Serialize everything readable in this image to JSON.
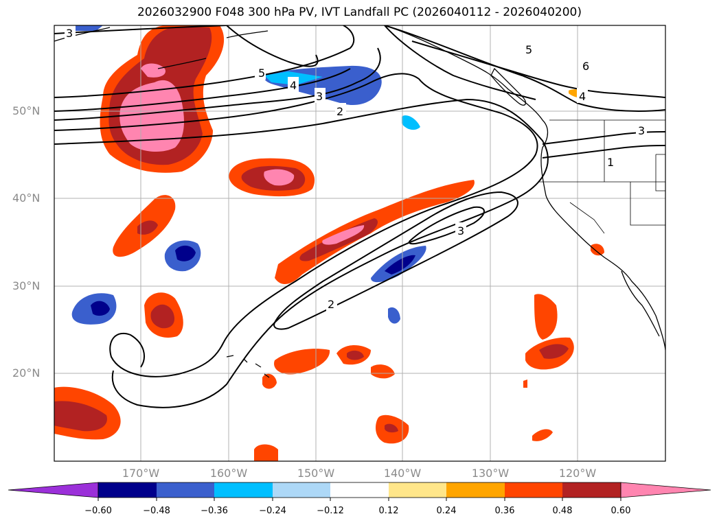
{
  "title": "2026032900 F048 300 hPa PV, IVT Landfall PC (2026040112 - 2026040200)",
  "lat_labels": [
    "50°N",
    "40°N",
    "30°N",
    "20°N"
  ],
  "lon_labels": [
    "170°W",
    "160°W",
    "150°W",
    "140°W",
    "130°W",
    "120°W"
  ],
  "contour_levels": [
    "1",
    "2",
    "3",
    "4",
    "5",
    "6"
  ],
  "colorbar": {
    "ticks": [
      "−0.60",
      "−0.48",
      "−0.36",
      "−0.24",
      "−0.12",
      "0.12",
      "0.24",
      "0.36",
      "0.48",
      "0.60"
    ],
    "colors": [
      "#9b30d9",
      "#00008b",
      "#3a5fcd",
      "#00bfff",
      "#add8f7",
      "#ffffff",
      "#ffe68a",
      "#ffa500",
      "#ff4500",
      "#b22222",
      "#ff85b0"
    ]
  },
  "chart_data": {
    "type": "map",
    "region": "North Pacific",
    "lat_range": [
      10,
      60
    ],
    "lon_range": [
      -180,
      -110
    ],
    "lat_ticks": [
      50,
      40,
      30,
      20
    ],
    "lon_ticks": [
      -170,
      -160,
      -150,
      -140,
      -130,
      -120
    ],
    "grid": true,
    "fields": [
      "300 hPa PV",
      "IVT Landfall PC"
    ],
    "colorbar_levels": [
      -0.6,
      -0.48,
      -0.36,
      -0.24,
      -0.12,
      0.12,
      0.24,
      0.36,
      0.48,
      0.6
    ],
    "contour_values": [
      1,
      2,
      3,
      4,
      5,
      6
    ]
  }
}
